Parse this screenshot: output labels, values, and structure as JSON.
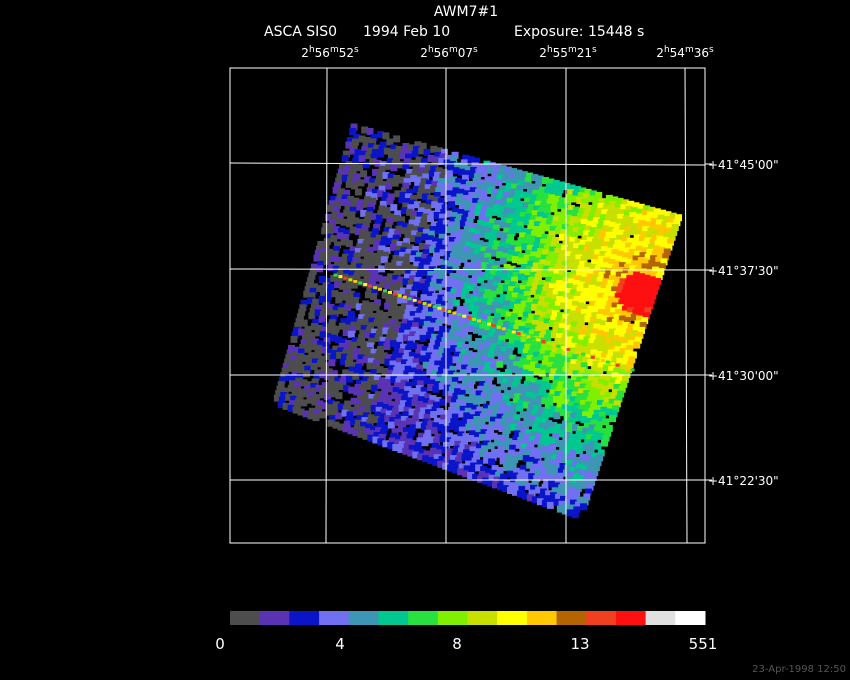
{
  "header": {
    "title": "AWM7#1",
    "instrument": "ASCA SIS0",
    "date": "1994 Feb 10",
    "exposure": "Exposure: 15448 s"
  },
  "ra_labels": [
    [
      "2",
      "h",
      "56",
      "m",
      "52",
      "s"
    ],
    [
      "2",
      "h",
      "56",
      "m",
      "07",
      "s"
    ],
    [
      "2",
      "h",
      "55",
      "m",
      "21",
      "s"
    ],
    [
      "2",
      "h",
      "54",
      "m",
      "36",
      "s"
    ]
  ],
  "dec_labels": [
    "+41°45'00\"",
    "+41°37'30\"",
    "+41°30'00\"",
    "+41°22'30\""
  ],
  "colorbar": {
    "colors": [
      "#4d4d4d",
      "#5a32b4",
      "#0a14c8",
      "#7070f0",
      "#3c96b4",
      "#00c890",
      "#28e040",
      "#80f000",
      "#c8e000",
      "#ffff00",
      "#ffc800",
      "#b46400",
      "#f04020",
      "#ff1010",
      "#e0e0e0",
      "#ffffff"
    ],
    "labels": [
      "0",
      "4",
      "8",
      "13",
      "551"
    ]
  },
  "timestamp": "23-Apr-1998 12:50"
}
